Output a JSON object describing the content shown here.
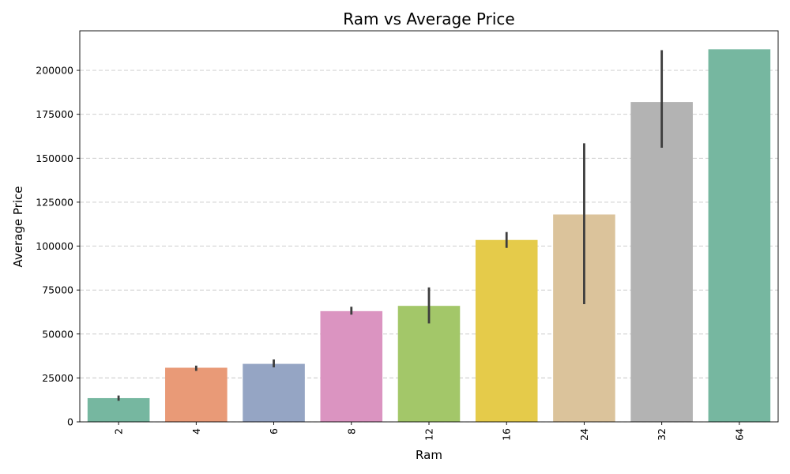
{
  "chart_data": {
    "type": "bar",
    "title": "Ram vs Average Price",
    "xlabel": "Ram",
    "ylabel": "Average Price",
    "categories": [
      "2",
      "4",
      "6",
      "8",
      "12",
      "16",
      "24",
      "32",
      "64"
    ],
    "values": [
      13500,
      30800,
      33000,
      63000,
      66000,
      103500,
      118000,
      182000,
      212000
    ],
    "error_low": [
      12000,
      29000,
      31000,
      61000,
      56000,
      99000,
      67000,
      156000,
      null
    ],
    "error_high": [
      15000,
      32000,
      35500,
      65500,
      76500,
      108000,
      158500,
      211500,
      null
    ],
    "colors": [
      "#76b7a0",
      "#e99a77",
      "#95a5c4",
      "#db94c1",
      "#a3c769",
      "#e5cb4a",
      "#dbc39b",
      "#b3b3b3",
      "#76b7a0"
    ],
    "ylim": [
      0,
      222500
    ],
    "yticks": [
      0,
      25000,
      50000,
      75000,
      100000,
      125000,
      150000,
      175000,
      200000
    ],
    "ytick_labels": [
      "0",
      "25000",
      "50000",
      "75000",
      "100000",
      "125000",
      "150000",
      "175000",
      "200000"
    ],
    "grid": "y-dashed",
    "legend": "none"
  }
}
